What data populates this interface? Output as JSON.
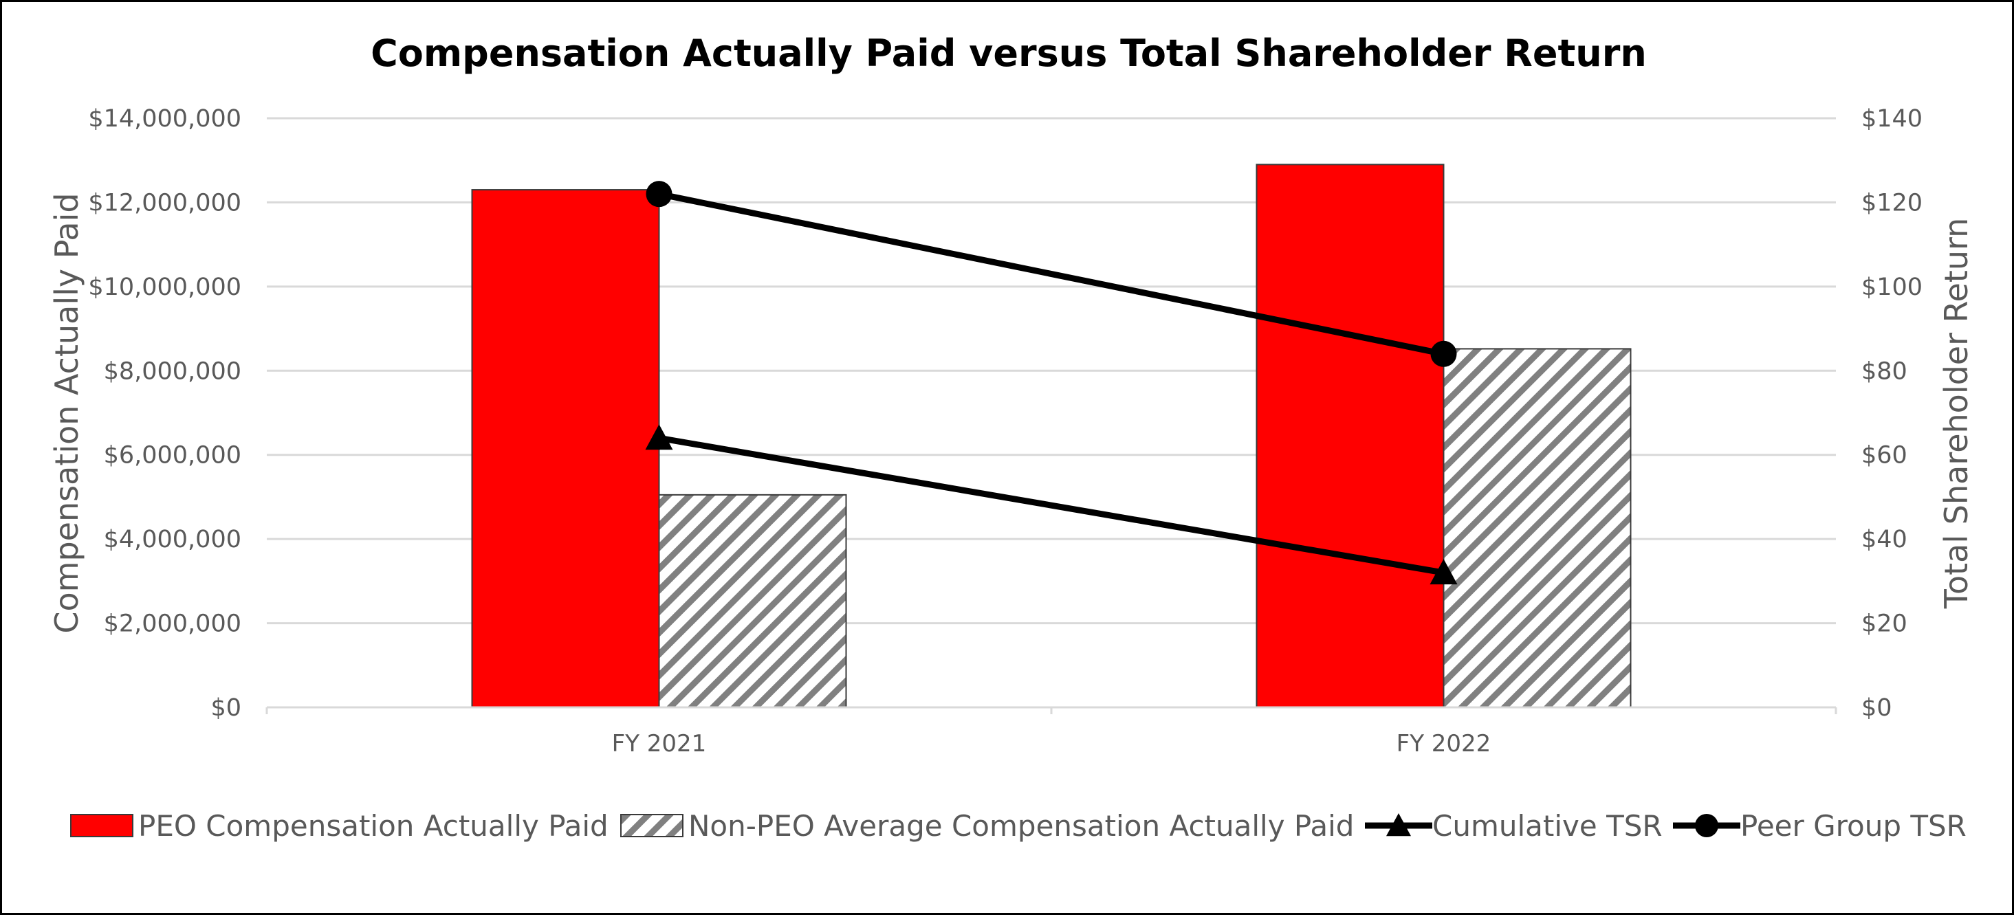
{
  "chart_data": {
    "type": "bar",
    "title": "Compensation Actually Paid versus Total Shareholder Return",
    "categories": [
      "FY 2021",
      "FY 2022"
    ],
    "ylabel": "Compensation Actually Paid",
    "y2label": "Total Shareholder Return",
    "ylim": [
      0,
      14000000
    ],
    "y2lim": [
      0,
      140
    ],
    "y_ticks": [
      "$0",
      "$2,000,000",
      "$4,000,000",
      "$6,000,000",
      "$8,000,000",
      "$10,000,000",
      "$12,000,000",
      "$14,000,000"
    ],
    "y2_ticks": [
      "$0",
      "$20",
      "$40",
      "$60",
      "$80",
      "$100",
      "$120",
      "$140"
    ],
    "grid": true,
    "legend_position": "bottom",
    "series": [
      {
        "name": "PEO Compensation Actually Paid",
        "kind": "bar",
        "axis": "left",
        "style": "solid",
        "color": "#ff0000",
        "values": [
          12300000,
          12900000
        ]
      },
      {
        "name": "Non-PEO Average Compensation Actually Paid",
        "kind": "bar",
        "axis": "left",
        "style": "hatched",
        "color": "#808080",
        "values": [
          5050000,
          8520000
        ]
      },
      {
        "name": "Cumulative TSR",
        "kind": "line",
        "axis": "right",
        "marker": "triangle",
        "color": "#000000",
        "values": [
          64,
          32
        ]
      },
      {
        "name": "Peer Group TSR",
        "kind": "line",
        "axis": "right",
        "marker": "circle",
        "color": "#000000",
        "values": [
          122,
          84
        ]
      }
    ]
  }
}
